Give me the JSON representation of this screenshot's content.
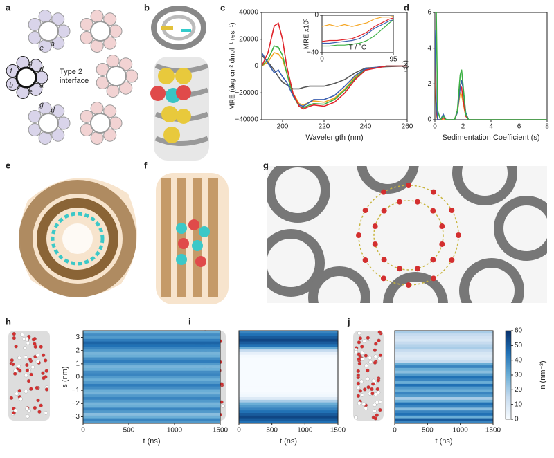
{
  "panel_labels": [
    "a",
    "b",
    "c",
    "d",
    "e",
    "f",
    "g",
    "h",
    "i",
    "j"
  ],
  "diagram": {
    "interface_label": [
      "Type 2",
      "interface"
    ],
    "heptad_labels": [
      "e",
      "a",
      "f",
      "g",
      "d",
      "b",
      "e",
      "a",
      "g",
      "d"
    ]
  },
  "chart_data": [
    {
      "type": "line",
      "xlabel": "Wavelength (nm)",
      "ylabel": "MRE (deg cm² dmol⁻¹ res⁻¹)",
      "xlim": [
        190,
        260
      ],
      "xticks": [
        200,
        220,
        240,
        260
      ],
      "ylim": [
        -40000,
        40000
      ],
      "yticks": [
        {
          "value": -40000,
          "label": "−40000"
        },
        {
          "value": -20000,
          "label": "−20000"
        },
        0,
        20000,
        40000
      ],
      "x": [
        190,
        193,
        196,
        198,
        200,
        202,
        205,
        208,
        210,
        213,
        215,
        220,
        225,
        230,
        235,
        240,
        250,
        260
      ],
      "series": [
        {
          "color": "#555555",
          "values": [
            8000,
            3000,
            -3000,
            -8000,
            -12000,
            -14000,
            -17000,
            -17000,
            -16000,
            -15000,
            -15000,
            -15000,
            -13000,
            -10000,
            -5000,
            -1500,
            -500,
            0
          ]
        },
        {
          "color": "#f5a623",
          "values": [
            0,
            3000,
            10000,
            9000,
            5000,
            -5000,
            -20000,
            -28000,
            -29000,
            -27000,
            -26000,
            -27000,
            -24000,
            -17000,
            -8000,
            -2000,
            0,
            0
          ]
        },
        {
          "color": "#3cb043",
          "values": [
            0,
            5000,
            15000,
            14000,
            8000,
            -5000,
            -22000,
            -30000,
            -31000,
            -29000,
            -28000,
            -28500,
            -25000,
            -18000,
            -9000,
            -2500,
            0,
            0
          ]
        },
        {
          "color": "#3a5fb0",
          "values": [
            10000,
            2000,
            -5000,
            -3000,
            -8000,
            -12000,
            -22000,
            -29000,
            -30000,
            -27000,
            -25000,
            -25000,
            -22000,
            -15000,
            -7000,
            -2000,
            0,
            0
          ]
        },
        {
          "color": "#e0242b",
          "values": [
            0,
            10000,
            30000,
            32000,
            20000,
            0,
            -20000,
            -30000,
            -32000,
            -30000,
            -29000,
            -30000,
            -27000,
            -20000,
            -10000,
            -3000,
            0,
            0
          ]
        }
      ]
    },
    {
      "type": "line",
      "xlabel": "T / °C",
      "ylabel": "MRE x10³",
      "xlim": [
        0,
        95
      ],
      "xticks": [
        0,
        95
      ],
      "ylim": [
        -40,
        0
      ],
      "yticks": [
        {
          "value": -40,
          "label": "−40"
        },
        0
      ],
      "x": [
        0,
        10,
        20,
        30,
        40,
        50,
        60,
        70,
        80,
        90,
        95
      ],
      "series": [
        {
          "color": "#f5a623",
          "values": [
            -12,
            -10,
            -12,
            -10,
            -12,
            -10,
            -8,
            -4,
            -2,
            -2,
            -1
          ]
        },
        {
          "color": "#e0242b",
          "values": [
            -28,
            -27,
            -27,
            -26,
            -25,
            -22,
            -18,
            -12,
            -8,
            -4,
            -3
          ]
        },
        {
          "color": "#3a5fb0",
          "values": [
            -30,
            -30,
            -29,
            -28,
            -27,
            -25,
            -20,
            -14,
            -10,
            -6,
            -5
          ]
        },
        {
          "color": "#3cb043",
          "values": [
            -33,
            -33,
            -32,
            -32,
            -31,
            -30,
            -27,
            -22,
            -15,
            -8,
            -5
          ]
        }
      ]
    },
    {
      "type": "line",
      "xlabel": "Sedimentation Coefficient (s)",
      "ylabel": "c(s)",
      "xlim": [
        0,
        8
      ],
      "xticks": [
        0,
        2,
        4,
        6,
        8
      ],
      "ylim": [
        0,
        6
      ],
      "yticks": [
        0,
        2,
        4,
        6
      ],
      "x": [
        0,
        0.1,
        0.2,
        0.4,
        0.6,
        0.8,
        1.0,
        1.4,
        1.6,
        1.8,
        1.9,
        2.0,
        2.2,
        2.4,
        3,
        4,
        6,
        8
      ],
      "series": [
        {
          "color": "#f5a623",
          "values": [
            3,
            0.3,
            0,
            0,
            0,
            0,
            0,
            0,
            0.4,
            1.5,
            1.4,
            1.0,
            0.2,
            0,
            0,
            0,
            0,
            0
          ]
        },
        {
          "color": "#e0242b",
          "values": [
            4,
            0.5,
            0,
            0,
            0.1,
            0,
            0,
            0,
            0.5,
            1.9,
            1.8,
            1.2,
            0.2,
            0,
            0,
            0,
            0,
            0
          ]
        },
        {
          "color": "#3a5fb0",
          "values": [
            5,
            1,
            0,
            0,
            0.3,
            0,
            0,
            0,
            0.4,
            1.8,
            2.2,
            1.8,
            0.4,
            0,
            0,
            0,
            0,
            0
          ]
        },
        {
          "color": "#3cb043",
          "values": [
            6,
            6,
            0.5,
            0,
            0.2,
            0,
            0,
            0,
            0.5,
            2.5,
            2.8,
            2.0,
            0.3,
            0,
            0,
            0,
            0,
            0
          ]
        }
      ]
    },
    {
      "type": "heatmap",
      "xlabel": "t (ns)",
      "ylabel": "s (nm)",
      "xlim": [
        0,
        1500
      ],
      "xticks": [
        0,
        500,
        1000,
        1500
      ],
      "ylim": [
        -3.5,
        3.5
      ],
      "yticks": [
        {
          "value": -3,
          "label": "−3"
        },
        {
          "value": -2,
          "label": "−2"
        },
        {
          "value": -1,
          "label": "−1"
        },
        0,
        1,
        2,
        3
      ],
      "y": [
        -3.4,
        -3.2,
        -3.0,
        -2.8,
        -2.6,
        -2.4,
        -2.2,
        -2.0,
        -1.8,
        -1.6,
        -1.4,
        -1.2,
        -1.0,
        -0.8,
        -0.6,
        -0.4,
        -0.2,
        0,
        0.2,
        0.4,
        0.6,
        0.8,
        1.0,
        1.2,
        1.4,
        1.6,
        1.8,
        2.0,
        2.2,
        2.4,
        2.6,
        2.8,
        3.0,
        3.2,
        3.4
      ],
      "values": [
        35,
        40,
        30,
        25,
        35,
        40,
        30,
        28,
        35,
        40,
        35,
        28,
        30,
        38,
        42,
        35,
        30,
        35,
        40,
        38,
        30,
        28,
        35,
        42,
        38,
        30,
        28,
        35,
        40,
        45,
        48,
        42,
        35,
        38,
        30
      ]
    },
    {
      "type": "heatmap",
      "xlabel": "t (ns)",
      "xlim": [
        0,
        1500
      ],
      "xticks": [
        0,
        500,
        1000,
        1500
      ],
      "ylim": [
        -3.5,
        3.5
      ],
      "y": [
        -3.4,
        -3.2,
        -3.0,
        -2.8,
        -2.6,
        -2.4,
        -2.2,
        -2.0,
        -1.8,
        -1.6,
        -1.4,
        -1.2,
        -1.0,
        -0.8,
        -0.6,
        -0.4,
        -0.2,
        0,
        0.2,
        0.4,
        0.6,
        0.8,
        1.0,
        1.2,
        1.4,
        1.6,
        1.8,
        2.0,
        2.2,
        2.4,
        2.6,
        2.8,
        3.0,
        3.2,
        3.4
      ],
      "values": [
        45,
        50,
        55,
        50,
        45,
        40,
        35,
        30,
        20,
        8,
        2,
        1,
        0,
        0,
        0,
        0,
        0,
        0,
        0,
        0,
        0,
        0,
        0,
        0,
        0,
        1,
        5,
        15,
        30,
        45,
        50,
        55,
        50,
        45,
        40
      ]
    },
    {
      "type": "heatmap",
      "xlabel": "t (ns)",
      "xlim": [
        0,
        1500
      ],
      "xticks": [
        0,
        500,
        1000,
        1500
      ],
      "ylim": [
        -3.5,
        3.5
      ],
      "y": [
        -3.4,
        -3.2,
        -3.0,
        -2.8,
        -2.6,
        -2.4,
        -2.2,
        -2.0,
        -1.8,
        -1.6,
        -1.4,
        -1.2,
        -1.0,
        -0.8,
        -0.6,
        -0.4,
        -0.2,
        0,
        0.2,
        0.4,
        0.6,
        0.8,
        1.0,
        1.2,
        1.4,
        1.6,
        1.8,
        2.0,
        2.2,
        2.4,
        2.6,
        2.8,
        3.0,
        3.2,
        3.4
      ],
      "values": [
        40,
        50,
        30,
        45,
        40,
        25,
        40,
        45,
        30,
        20,
        35,
        40,
        30,
        35,
        45,
        30,
        40,
        45,
        35,
        25,
        30,
        40,
        30,
        15,
        10,
        8,
        10,
        15,
        20,
        18,
        15,
        10,
        12,
        15,
        20
      ]
    },
    {
      "type": "colorbar",
      "label": "n (nm⁻³)",
      "lim": [
        0,
        60
      ],
      "ticks": [
        0,
        10,
        20,
        30,
        40,
        50,
        60
      ],
      "colors": [
        "#f7fbff",
        "#c6dbef",
        "#6baed6",
        "#2171b5",
        "#08306b"
      ]
    }
  ]
}
